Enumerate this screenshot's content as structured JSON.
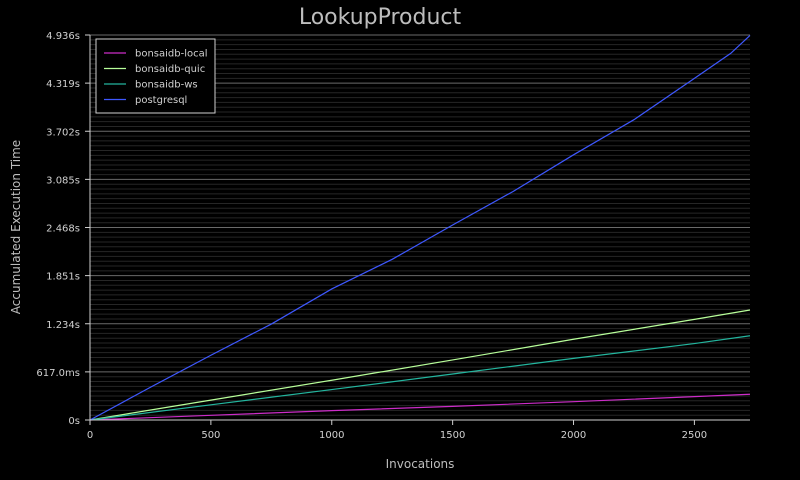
{
  "chart_data": {
    "type": "line",
    "title": "LookupProduct",
    "xlabel": "Invocations",
    "ylabel": "Accumulated Execution Time",
    "xlim": [
      0,
      2730
    ],
    "ylim": [
      0,
      4.936
    ],
    "x_ticks": [
      {
        "value": 0,
        "label": "0"
      },
      {
        "value": 500,
        "label": "500"
      },
      {
        "value": 1000,
        "label": "1000"
      },
      {
        "value": 1500,
        "label": "1500"
      },
      {
        "value": 2000,
        "label": "2000"
      },
      {
        "value": 2500,
        "label": "2500"
      }
    ],
    "y_ticks": [
      {
        "value": 0,
        "label": "0s"
      },
      {
        "value": 0.617,
        "label": "617.0ms"
      },
      {
        "value": 1.234,
        "label": "1.234s"
      },
      {
        "value": 1.851,
        "label": "1.851s"
      },
      {
        "value": 2.468,
        "label": "2.468s"
      },
      {
        "value": 3.085,
        "label": "3.085s"
      },
      {
        "value": 3.702,
        "label": "3.702s"
      },
      {
        "value": 4.319,
        "label": "4.319s"
      },
      {
        "value": 4.936,
        "label": "4.936s"
      }
    ],
    "grid": true,
    "legend_position": "top-left",
    "series": [
      {
        "name": "bonsaidb-local",
        "color": "#cc2cc8",
        "x": [
          0,
          500,
          1000,
          1500,
          2000,
          2500,
          2730
        ],
        "y": [
          0,
          0.06,
          0.12,
          0.175,
          0.235,
          0.3,
          0.33
        ]
      },
      {
        "name": "bonsaidb-quic",
        "color": "#b8ff9a",
        "x": [
          0,
          500,
          1000,
          1500,
          2000,
          2500,
          2730
        ],
        "y": [
          0,
          0.255,
          0.51,
          0.77,
          1.035,
          1.29,
          1.41
        ]
      },
      {
        "name": "bonsaidb-ws",
        "color": "#23b59e",
        "x": [
          0,
          500,
          1000,
          1500,
          2000,
          2500,
          2730
        ],
        "y": [
          0,
          0.195,
          0.39,
          0.59,
          0.79,
          0.98,
          1.08
        ]
      },
      {
        "name": "postgresql",
        "color": "#3e58ff",
        "x": [
          0,
          250,
          500,
          750,
          1000,
          1250,
          1500,
          1750,
          2000,
          2250,
          2500,
          2650,
          2730
        ],
        "y": [
          0,
          0.42,
          0.83,
          1.23,
          1.68,
          2.06,
          2.5,
          2.93,
          3.4,
          3.85,
          4.38,
          4.7,
          4.93
        ]
      }
    ]
  }
}
